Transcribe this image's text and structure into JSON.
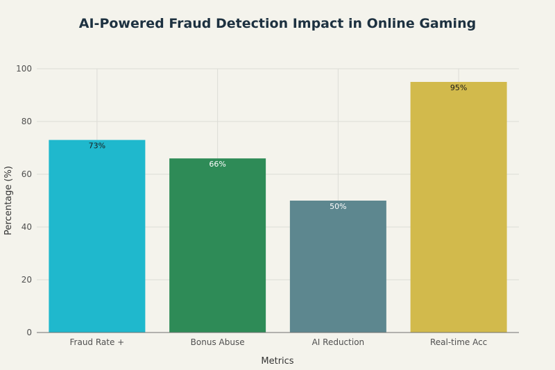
{
  "chart_data": {
    "type": "bar",
    "title": "AI-Powered Fraud Detection Impact in Online Gaming",
    "xlabel": "Metrics",
    "ylabel": "Percentage (%)",
    "ylim": [
      0,
      100
    ],
    "yticks": [
      0,
      20,
      40,
      60,
      80,
      100
    ],
    "grid": true,
    "categories": [
      "Fraud Rate +",
      "Bonus Abuse",
      "AI Reduction",
      "Real-time Acc"
    ],
    "values": [
      73,
      66,
      50,
      95
    ],
    "data_labels": [
      "73%",
      "66%",
      "50%",
      "95%"
    ],
    "colors": [
      "#1fb8cd",
      "#2e8b57",
      "#5d878f",
      "#d2ba4c"
    ],
    "label_colors": [
      "#1a1a1a",
      "#ffffff",
      "#ffffff",
      "#1a1a1a"
    ]
  }
}
